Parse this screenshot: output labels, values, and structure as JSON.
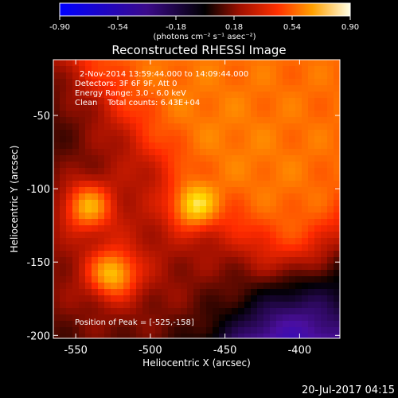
{
  "colorbar": {
    "ticks": [
      "-0.90",
      "-0.54",
      "-0.18",
      "0.18",
      "0.54",
      "0.90"
    ],
    "unit": "(photons cm⁻² s⁻¹ asec⁻²)",
    "min": -0.9,
    "max": 0.9
  },
  "chart_data": {
    "type": "heatmap",
    "title": "Reconstructed RHESSI Image",
    "xlabel": "Heliocentric X (arcsec)",
    "ylabel": "Heliocentric Y (arcsec)",
    "xlim": [
      -565,
      -373
    ],
    "ylim": [
      -202,
      -12
    ],
    "xticks": [
      -550,
      -500,
      -450,
      -400
    ],
    "yticks": [
      -50,
      -100,
      -150,
      -200
    ],
    "peaks": [
      {
        "x": -525,
        "y": -158,
        "value": 0.9
      },
      {
        "x": -542,
        "y": -112,
        "value": 0.85
      },
      {
        "x": -471,
        "y": -112,
        "value": 0.84
      }
    ],
    "colormap": [
      "#0000ff",
      "#4b0f9e",
      "#000000",
      "#a01000",
      "#ff2a00",
      "#ff8a00",
      "#ffd700",
      "#ffffe0"
    ]
  },
  "annotations": {
    "line1": "2-Nov-2014 13:59:44.000 to 14:09:44.000",
    "line2": "Detectors: 3F 6F 9F, Att 0",
    "line3": "Energy Range: 3.0 - 6.0 keV",
    "line4": "Clean    Total counts: 6.43E+04",
    "peak": "Position of Peak = [-525,-158]"
  },
  "timestamp": "20-Jul-2017 04:15"
}
